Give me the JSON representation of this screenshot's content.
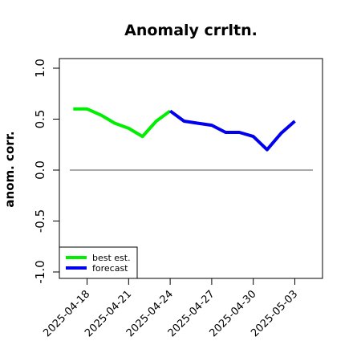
{
  "chart_data": {
    "type": "line",
    "title": "Anomaly crrltn.",
    "xlabel": "",
    "ylabel": "anom. corr.",
    "ylim": [
      -1.0,
      1.0
    ],
    "yticks": [
      "-1.0",
      "-0.5",
      "0.0",
      "0.5",
      "1.0"
    ],
    "ytick_values": [
      -1.0,
      -0.5,
      0.0,
      0.5,
      1.0
    ],
    "x_range": [
      "2025-04-16",
      "2025-05-05"
    ],
    "xticks": [
      "2025-04-18",
      "2025-04-21",
      "2025-04-24",
      "2025-04-27",
      "2025-04-30",
      "2025-05-03"
    ],
    "highlight_tick": "2025-04-24",
    "highlight_color": "#228B22",
    "reference_line": 0.0,
    "grid": false,
    "legend_position": "bottom-left",
    "series": [
      {
        "name": "best est.",
        "color": "#00ee00",
        "x": [
          "2025-04-17",
          "2025-04-18",
          "2025-04-19",
          "2025-04-20",
          "2025-04-21",
          "2025-04-22",
          "2025-04-23",
          "2025-04-24"
        ],
        "y": [
          0.6,
          0.6,
          0.54,
          0.46,
          0.41,
          0.33,
          0.48,
          0.58
        ]
      },
      {
        "name": "forecast",
        "color": "#0000ee",
        "x": [
          "2025-04-24",
          "2025-04-25",
          "2025-04-26",
          "2025-04-27",
          "2025-04-28",
          "2025-04-29",
          "2025-04-30",
          "2025-05-01",
          "2025-05-02",
          "2025-05-03"
        ],
        "y": [
          0.58,
          0.48,
          0.46,
          0.44,
          0.37,
          0.37,
          0.33,
          0.2,
          0.36,
          0.48
        ]
      }
    ]
  }
}
